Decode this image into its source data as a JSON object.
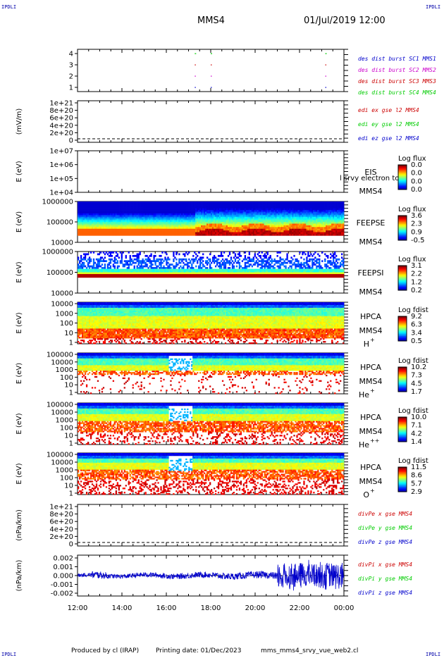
{
  "corner_tag": "IPDLI",
  "header": {
    "spacecraft": "MMS4",
    "datetime": "01/Jul/2019 12:00"
  },
  "footer": {
    "produced_by": "Produced by cl (IRAP)",
    "printing_date": "Printing date: 01/Dec/2023",
    "filename": "mms_mms4_srvy_vue_web2.cl"
  },
  "colors": {
    "red": "#cc0000",
    "green": "#00cc00",
    "blue": "#0000cc",
    "magenta": "#cc00cc"
  },
  "chart_data": [
    {
      "type": "scatter",
      "panel": "burst",
      "ytick_labels": [
        "4",
        "3",
        "2",
        "1"
      ],
      "series": [
        {
          "name": "des dist burst SC1 MMS1",
          "color": "#0000cc"
        },
        {
          "name": "des dist burst SC2 MMS2",
          "color": "#cc00cc"
        },
        {
          "name": "des dist burst SC3 MMS3",
          "color": "#cc0000"
        },
        {
          "name": "des dist burst SC4 MMS4",
          "color": "#00cc00"
        }
      ]
    },
    {
      "type": "line",
      "panel": "edi",
      "ylabel": "(mV/m)",
      "ytick_labels": [
        "1e+21",
        "8e+20",
        "6e+20",
        "4e+20",
        "2e+20",
        "0"
      ],
      "series": [
        {
          "name": "edi ex gse l2 MMS4",
          "color": "#cc0000"
        },
        {
          "name": "edi ey gse l2 MMS4",
          "color": "#00cc00"
        },
        {
          "name": "edi ez gse l2 MMS4",
          "color": "#0000cc"
        }
      ]
    },
    {
      "type": "heatmap",
      "panel": "eis",
      "ylabel": "E (eV)",
      "ytick_labels": [
        "1e+07",
        "1e+06",
        "1e+05",
        "1e+04"
      ],
      "instrument": "EIS",
      "spacecraft": "MMS4",
      "overlay_text": "l srvy electron to",
      "colorbar": {
        "title": "Log flux",
        "labels": [
          "0.0",
          "0.0",
          "0.0",
          "0.0"
        ]
      }
    },
    {
      "type": "heatmap",
      "panel": "feepse",
      "ylabel": "E (eV)",
      "ytick_labels": [
        "1000000",
        "100000",
        "10000"
      ],
      "instrument": "FEEPSE",
      "spacecraft": "MMS4",
      "colorbar": {
        "title": "Log flux",
        "labels": [
          "3.6",
          "2.3",
          "0.9",
          "-0.5"
        ]
      }
    },
    {
      "type": "heatmap",
      "panel": "feepsi",
      "ylabel": "E (eV)",
      "ytick_labels": [
        "1000000",
        "100000",
        "10000"
      ],
      "instrument": "FEEPSI",
      "spacecraft": "MMS4",
      "colorbar": {
        "title": "Log flux",
        "labels": [
          "3.1",
          "2.2",
          "1.2",
          "0.2"
        ]
      }
    },
    {
      "type": "heatmap",
      "panel": "hpca_h",
      "ylabel": "E (eV)",
      "ytick_labels": [
        "10000",
        "1000",
        "100",
        "10",
        "1"
      ],
      "instrument": "HPCA",
      "spacecraft": "MMS4",
      "species": "H",
      "charge": "+",
      "colorbar": {
        "title": "Log fdist",
        "labels": [
          "9.2",
          "6.3",
          "3.4",
          "0.5"
        ]
      }
    },
    {
      "type": "heatmap",
      "panel": "hpca_he",
      "ylabel": "E (eV)",
      "ytick_labels": [
        "100000",
        "10000",
        "1000",
        "100",
        "10",
        "1"
      ],
      "instrument": "HPCA",
      "spacecraft": "MMS4",
      "species": "He",
      "charge": "+",
      "colorbar": {
        "title": "Log fdist",
        "labels": [
          "10.2",
          "7.3",
          "4.5",
          "1.7"
        ]
      }
    },
    {
      "type": "heatmap",
      "panel": "hpca_hepp",
      "ylabel": "E (eV)",
      "ytick_labels": [
        "100000",
        "10000",
        "1000",
        "100",
        "10",
        "1"
      ],
      "instrument": "HPCA",
      "spacecraft": "MMS4",
      "species": "He",
      "charge": "++",
      "colorbar": {
        "title": "Log fdist",
        "labels": [
          "10.0",
          "7.1",
          "4.2",
          "1.4"
        ]
      }
    },
    {
      "type": "heatmap",
      "panel": "hpca_o",
      "ylabel": "E (eV)",
      "ytick_labels": [
        "100000",
        "10000",
        "1000",
        "100",
        "10",
        "1"
      ],
      "instrument": "HPCA",
      "spacecraft": "MMS4",
      "species": "O",
      "charge": "+",
      "colorbar": {
        "title": "Log fdist",
        "labels": [
          "11.5",
          "8.6",
          "5.7",
          "2.9"
        ]
      }
    },
    {
      "type": "line",
      "panel": "divpe",
      "ylabel": "(nPa/km)",
      "ytick_labels": [
        "1e+21",
        "8e+20",
        "6e+20",
        "4e+20",
        "2e+20",
        "0"
      ],
      "series": [
        {
          "name": "divPe x gse MMS4",
          "color": "#cc0000"
        },
        {
          "name": "divPe y gse MMS4",
          "color": "#00cc00"
        },
        {
          "name": "divPe z gse MMS4",
          "color": "#0000cc"
        }
      ]
    },
    {
      "type": "line",
      "panel": "divpi",
      "ylabel": "(nPa/km)",
      "ytick_labels": [
        "0.002",
        "0.001",
        "0.000",
        "-0.001",
        "-0.002"
      ],
      "ylim": [
        -0.002,
        0.002
      ],
      "series": [
        {
          "name": "divPi x gse MMS4",
          "color": "#cc0000"
        },
        {
          "name": "divPi y gse MMS4",
          "color": "#00cc00"
        },
        {
          "name": "divPi z gse MMS4",
          "color": "#0000cc"
        }
      ]
    }
  ],
  "xaxis": {
    "tick_labels": [
      "12:00",
      "14:00",
      "16:00",
      "18:00",
      "20:00",
      "22:00",
      "00:00"
    ]
  }
}
